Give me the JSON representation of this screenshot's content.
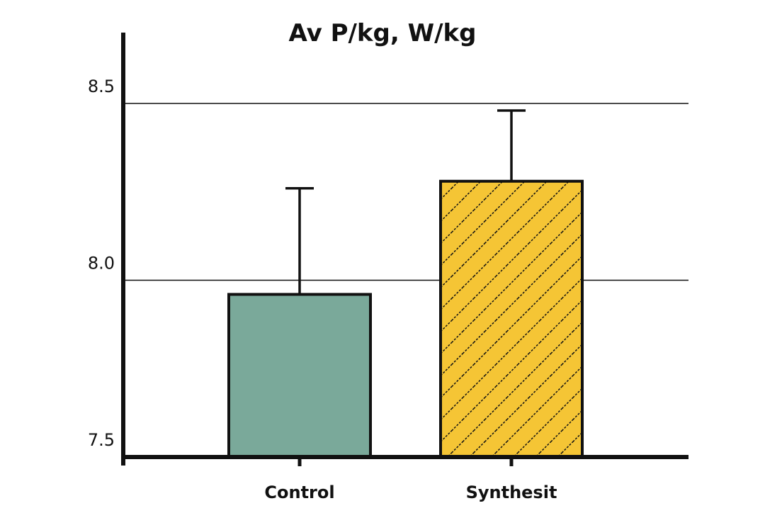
{
  "chart_data": {
    "type": "bar",
    "title": "Av P/kg, W/kg",
    "xlabel": "",
    "ylabel": "",
    "categories": [
      "Control",
      "Synthesit"
    ],
    "values": [
      7.96,
      8.28
    ],
    "error_upper": [
      8.26,
      8.48
    ],
    "ylim": [
      7.5,
      8.55
    ],
    "yticks": [
      {
        "value": 7.5,
        "label": "7.5"
      },
      {
        "value": 8.0,
        "label": "8.0"
      },
      {
        "value": 8.5,
        "label": "8.5"
      }
    ],
    "grid": true,
    "colors": {
      "Control": "#7aa99a",
      "Synthesit": "#f5c535",
      "hatch": "#111111",
      "axis": "#111111"
    },
    "patterns": [
      "solid",
      "diagonal-hatch"
    ]
  }
}
